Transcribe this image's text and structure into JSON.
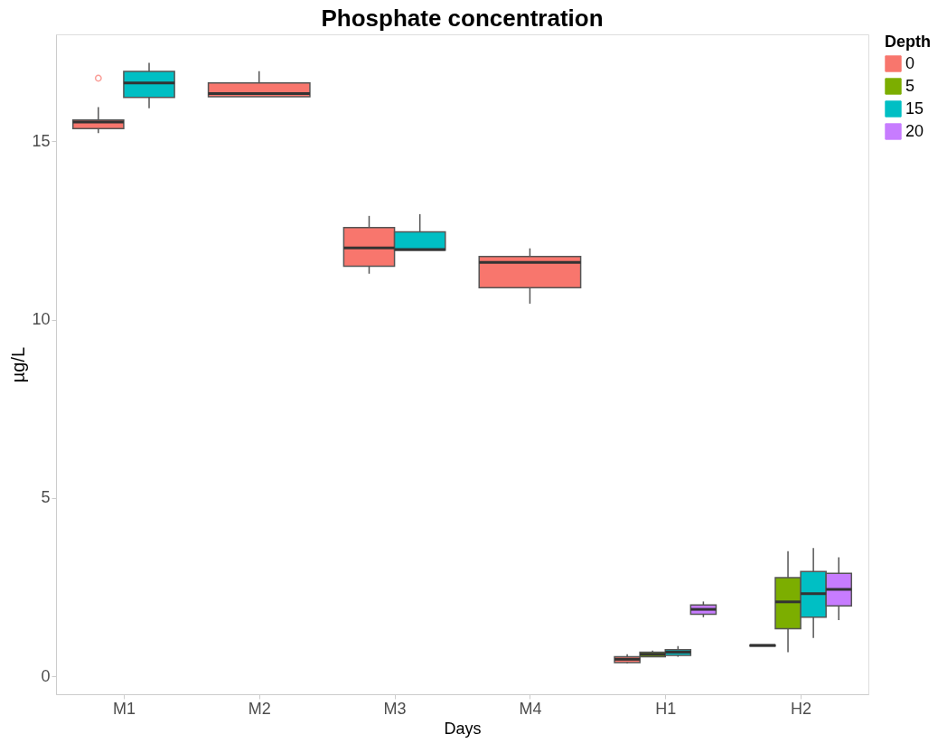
{
  "chart_data": {
    "type": "box",
    "title": "Phosphate concentration",
    "xlabel": "Days",
    "ylabel": "µg/L",
    "legend_title": "Depth",
    "legend": "right",
    "grid": false,
    "categories": [
      "M1",
      "M2",
      "M3",
      "M4",
      "H1",
      "H2"
    ],
    "ylim": [
      -0.5,
      18.0
    ],
    "yticks": [
      0,
      5,
      10,
      15
    ],
    "series": [
      {
        "name": "0",
        "color": "#f8766d",
        "boxes": [
          {
            "low": 15.23,
            "q1": 15.36,
            "median": 15.54,
            "q3": 15.6,
            "high": 15.96,
            "outliers": [
              16.77
            ]
          },
          {
            "low": 16.25,
            "q1": 16.25,
            "median": 16.34,
            "q3": 16.64,
            "high": 16.97
          },
          {
            "low": 11.29,
            "q1": 11.5,
            "median": 12.01,
            "q3": 12.58,
            "high": 12.91
          },
          {
            "low": 10.45,
            "q1": 10.9,
            "median": 11.61,
            "q3": 11.77,
            "high": 12.0
          },
          {
            "low": 0.36,
            "q1": 0.39,
            "median": 0.48,
            "q3": 0.55,
            "high": 0.62
          },
          {
            "low": 0.85,
            "q1": 0.85,
            "median": 0.87,
            "q3": 0.88,
            "high": 0.88
          }
        ]
      },
      {
        "name": "5",
        "color": "#7cae00",
        "boxes": [
          null,
          null,
          null,
          null,
          {
            "low": 0.54,
            "q1": 0.55,
            "median": 0.62,
            "q3": 0.68,
            "high": 0.72
          },
          {
            "low": 0.68,
            "q1": 1.34,
            "median": 2.09,
            "q3": 2.77,
            "high": 3.51
          }
        ]
      },
      {
        "name": "15",
        "color": "#00bfc4",
        "boxes": [
          {
            "low": 15.93,
            "q1": 16.23,
            "median": 16.64,
            "q3": 16.96,
            "high": 17.2
          },
          null,
          {
            "low": 11.95,
            "q1": 11.95,
            "median": 11.97,
            "q3": 12.46,
            "high": 12.96
          },
          null,
          {
            "low": 0.55,
            "q1": 0.59,
            "median": 0.68,
            "q3": 0.75,
            "high": 0.85
          },
          {
            "low": 1.08,
            "q1": 1.66,
            "median": 2.32,
            "q3": 2.94,
            "high": 3.6
          }
        ]
      },
      {
        "name": "20",
        "color": "#c77cff",
        "boxes": [
          null,
          null,
          null,
          null,
          {
            "low": 1.66,
            "q1": 1.74,
            "median": 1.88,
            "q3": 2.0,
            "high": 2.1
          },
          {
            "low": 1.58,
            "q1": 1.98,
            "median": 2.44,
            "q3": 2.89,
            "high": 3.34
          }
        ]
      }
    ]
  }
}
